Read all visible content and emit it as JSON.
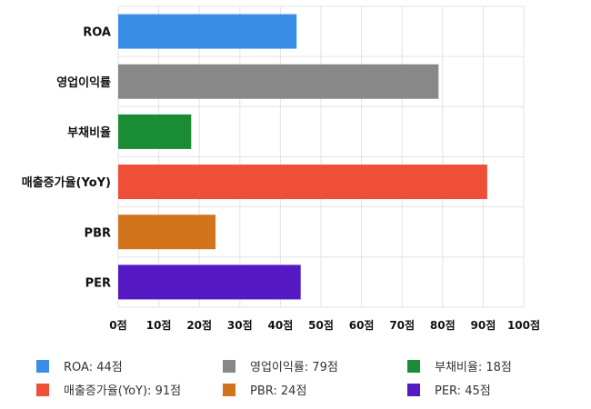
{
  "chart_data": {
    "type": "bar",
    "orientation": "horizontal",
    "categories": [
      "ROA",
      "영업이익률",
      "부채비율",
      "매출증가율(YoY)",
      "PBR",
      "PER"
    ],
    "values": [
      44,
      79,
      18,
      91,
      24,
      45
    ],
    "colors": [
      "#3b8ee8",
      "#888888",
      "#1a8c35",
      "#ef4f37",
      "#d1741b",
      "#5519c3"
    ],
    "xlim": [
      0,
      100
    ],
    "ticks": [
      0,
      10,
      20,
      30,
      40,
      50,
      60,
      70,
      80,
      90,
      100
    ],
    "tick_suffix": "점",
    "grid": true,
    "legend": {
      "placement": "bottom",
      "items": [
        {
          "label": "ROA: 44점",
          "color": "#3b8ee8"
        },
        {
          "label": "영업이익률: 79점",
          "color": "#888888"
        },
        {
          "label": "부채비율: 18점",
          "color": "#1a8c35"
        },
        {
          "label": "매출증가율(YoY): 91점",
          "color": "#ef4f37"
        },
        {
          "label": "PBR: 24점",
          "color": "#d1741b"
        },
        {
          "label": "PER: 45점",
          "color": "#5519c3"
        }
      ]
    }
  }
}
